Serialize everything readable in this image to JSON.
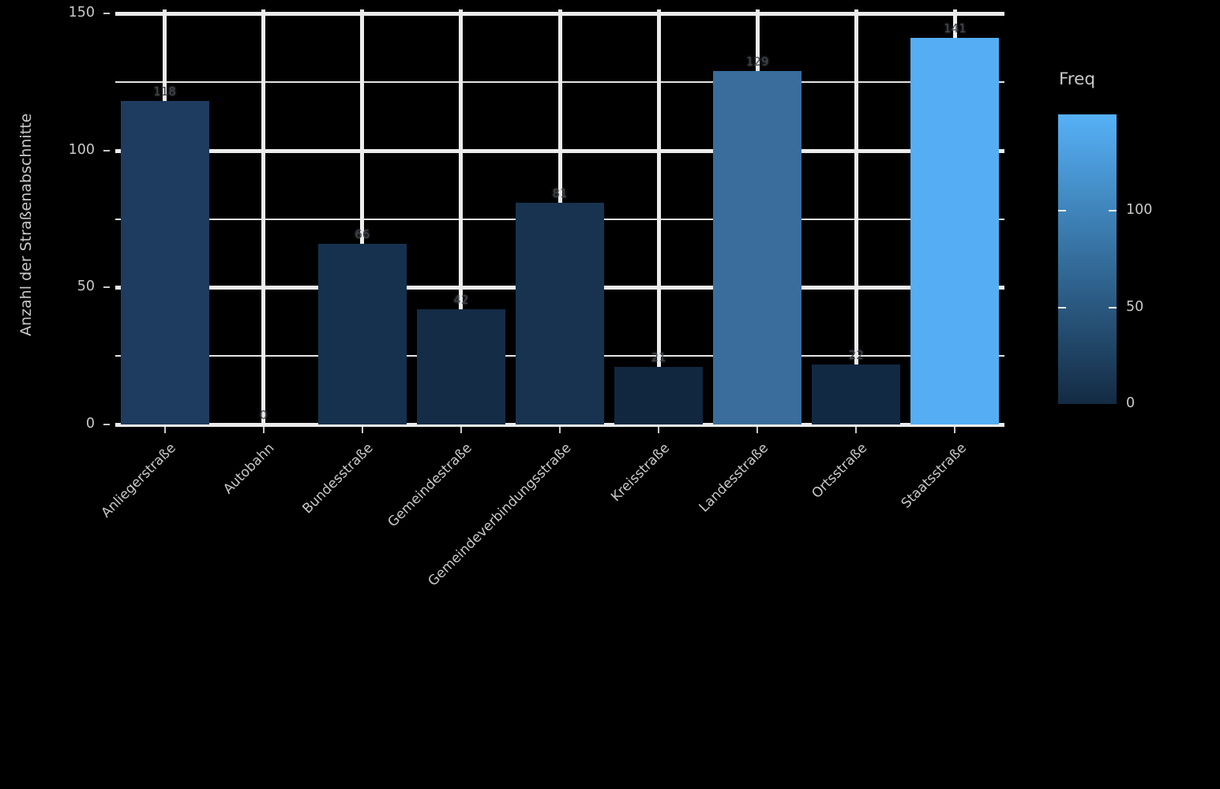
{
  "chart_data": {
    "type": "bar",
    "title": "",
    "xlabel": "",
    "ylabel": "Anzahl der Straßenabschnitte",
    "categories": [
      "Anliegerstraße",
      "Autobahn",
      "Bundesstraße",
      "Gemeindestraße",
      "Gemeindeverbindungsstraße",
      "Kreisstraße",
      "Landesstraße",
      "Ortsstraße",
      "Staatsstraße"
    ],
    "values": [
      118,
      0,
      66,
      42,
      81,
      21,
      129,
      22,
      141
    ],
    "bar_labels": [
      "118",
      "0",
      "66",
      "42",
      "81",
      "21",
      "129",
      "22",
      "141"
    ],
    "bar_colors": [
      "#1E3C5F",
      "#132B43",
      "#16314E",
      "#142C46",
      "#17334F",
      "#112740",
      "#3A6D9C",
      "#122943",
      "#55AEF3"
    ],
    "ylim": [
      0,
      150
    ],
    "yticks": [
      0,
      50,
      100,
      150
    ],
    "yticks_minor": [
      25,
      75,
      125
    ],
    "grid": "on",
    "background": "transparent-black",
    "gridline_color": "#ececec",
    "axis_text_color": "#c9c9c9",
    "bar_label_color": "#42474e",
    "legend": {
      "title": "Freq",
      "position": "right",
      "gradient_high": "#56B1F7",
      "gradient_low": "#132B43",
      "ticks": [
        100,
        50,
        0
      ],
      "range": [
        0,
        150
      ]
    }
  }
}
